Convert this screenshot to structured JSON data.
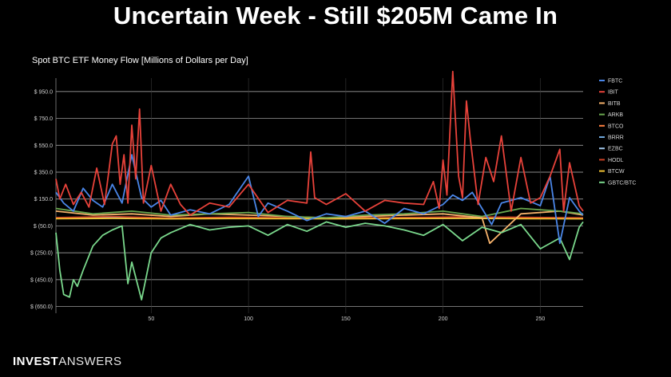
{
  "headline": "Uncertain Week - Still $205M Came In",
  "brand": {
    "part1": "INVEST",
    "part2": "ANSWERS"
  },
  "chart_data": {
    "type": "line",
    "title": "Spot BTC ETF Money Flow [Millions of Dollars per Day]",
    "xlabel": "",
    "ylabel": "",
    "xlim": [
      1,
      272
    ],
    "ylim": [
      -700,
      1050
    ],
    "x_ticks": [
      50,
      100,
      150,
      200,
      250
    ],
    "y_ticks": [
      {
        "value": 950,
        "label": "$ 950.0"
      },
      {
        "value": 750,
        "label": "$ 750.0"
      },
      {
        "value": 550,
        "label": "$ 550.0"
      },
      {
        "value": 350,
        "label": "$ 350.0"
      },
      {
        "value": 150,
        "label": "$ 150.0"
      },
      {
        "value": -50,
        "label": "$ (50.0)"
      },
      {
        "value": -250,
        "label": "$ (250.0)"
      },
      {
        "value": -450,
        "label": "$ (450.0)"
      },
      {
        "value": -650,
        "label": "$ (650.0)"
      }
    ],
    "legend_position": "right",
    "series": [
      {
        "name": "FBTC",
        "color": "#4a86e8",
        "x": [
          1,
          5,
          10,
          15,
          20,
          25,
          30,
          35,
          40,
          45,
          50,
          55,
          60,
          70,
          80,
          90,
          100,
          105,
          110,
          120,
          130,
          140,
          150,
          160,
          170,
          180,
          190,
          200,
          205,
          210,
          215,
          220,
          225,
          230,
          240,
          250,
          255,
          260,
          265,
          270,
          272
        ],
        "values": [
          200,
          120,
          60,
          230,
          140,
          90,
          260,
          120,
          480,
          160,
          90,
          140,
          30,
          70,
          40,
          110,
          320,
          20,
          120,
          60,
          -10,
          40,
          20,
          60,
          -30,
          80,
          40,
          110,
          180,
          140,
          200,
          80,
          -40,
          120,
          160,
          100,
          320,
          -180,
          160,
          60,
          30
        ]
      },
      {
        "name": "IBIT",
        "color": "#e8423a",
        "x": [
          1,
          3,
          6,
          10,
          14,
          18,
          22,
          26,
          30,
          32,
          34,
          36,
          38,
          40,
          42,
          44,
          46,
          50,
          55,
          60,
          65,
          70,
          80,
          90,
          100,
          110,
          120,
          130,
          132,
          134,
          140,
          150,
          160,
          170,
          180,
          190,
          195,
          198,
          200,
          202,
          205,
          208,
          210,
          212,
          214,
          218,
          222,
          226,
          230,
          235,
          240,
          245,
          250,
          255,
          260,
          262,
          265,
          270,
          272
        ],
        "values": [
          300,
          150,
          260,
          110,
          200,
          90,
          380,
          110,
          560,
          620,
          260,
          480,
          120,
          700,
          300,
          820,
          120,
          400,
          60,
          260,
          110,
          30,
          120,
          90,
          260,
          50,
          140,
          120,
          500,
          160,
          110,
          190,
          60,
          140,
          120,
          110,
          280,
          80,
          440,
          180,
          1100,
          320,
          160,
          880,
          600,
          110,
          460,
          280,
          620,
          60,
          460,
          120,
          160,
          320,
          520,
          60,
          420,
          100,
          60
        ]
      },
      {
        "name": "BITB",
        "color": "#f6b26b",
        "x": [
          1,
          20,
          40,
          60,
          80,
          100,
          120,
          140,
          160,
          180,
          200,
          220,
          224,
          240,
          260,
          272
        ],
        "values": [
          60,
          30,
          40,
          20,
          40,
          30,
          20,
          10,
          20,
          30,
          40,
          10,
          -180,
          40,
          60,
          30
        ]
      },
      {
        "name": "ARKB",
        "color": "#6aa84f",
        "x": [
          1,
          20,
          40,
          60,
          80,
          100,
          120,
          140,
          160,
          180,
          200,
          220,
          240,
          260,
          272
        ],
        "values": [
          80,
          40,
          60,
          30,
          40,
          50,
          20,
          10,
          30,
          40,
          60,
          20,
          80,
          60,
          40
        ]
      },
      {
        "name": "BTCO",
        "color": "#ff7f40",
        "x": [
          1,
          30,
          60,
          90,
          120,
          150,
          180,
          210,
          240,
          272
        ],
        "values": [
          10,
          15,
          5,
          10,
          5,
          8,
          10,
          15,
          10,
          8
        ]
      },
      {
        "name": "BRRR",
        "color": "#6fa8dc",
        "x": [
          1,
          30,
          60,
          90,
          120,
          150,
          180,
          210,
          240,
          272
        ],
        "values": [
          8,
          12,
          6,
          10,
          8,
          6,
          10,
          12,
          8,
          6
        ]
      },
      {
        "name": "EZBC",
        "color": "#9fc5e8",
        "x": [
          1,
          30,
          60,
          90,
          120,
          150,
          180,
          210,
          240,
          272
        ],
        "values": [
          6,
          10,
          4,
          8,
          6,
          5,
          8,
          10,
          6,
          5
        ]
      },
      {
        "name": "HODL",
        "color": "#cc4125",
        "x": [
          1,
          30,
          60,
          90,
          120,
          150,
          180,
          210,
          240,
          272
        ],
        "values": [
          12,
          20,
          8,
          15,
          10,
          8,
          12,
          18,
          14,
          10
        ]
      },
      {
        "name": "BTCW",
        "color": "#f1c232",
        "x": [
          1,
          30,
          60,
          90,
          120,
          150,
          180,
          210,
          240,
          272
        ],
        "values": [
          4,
          6,
          3,
          5,
          4,
          3,
          5,
          6,
          4,
          3
        ]
      },
      {
        "name": "GBTC/BTC",
        "color": "#7ad88c",
        "x": [
          1,
          3,
          5,
          8,
          10,
          12,
          15,
          20,
          25,
          30,
          35,
          38,
          40,
          45,
          50,
          55,
          60,
          70,
          80,
          90,
          100,
          110,
          120,
          130,
          140,
          150,
          160,
          170,
          180,
          190,
          200,
          210,
          220,
          230,
          240,
          250,
          260,
          265,
          270,
          272
        ],
        "values": [
          -100,
          -380,
          -560,
          -580,
          -450,
          -500,
          -380,
          -200,
          -120,
          -80,
          -50,
          -480,
          -320,
          -600,
          -250,
          -140,
          -100,
          -40,
          -80,
          -60,
          -50,
          -120,
          -40,
          -90,
          -20,
          -60,
          -30,
          -50,
          -80,
          -120,
          -40,
          -160,
          -60,
          -100,
          -40,
          -220,
          -140,
          -300,
          -60,
          -20
        ]
      }
    ]
  }
}
